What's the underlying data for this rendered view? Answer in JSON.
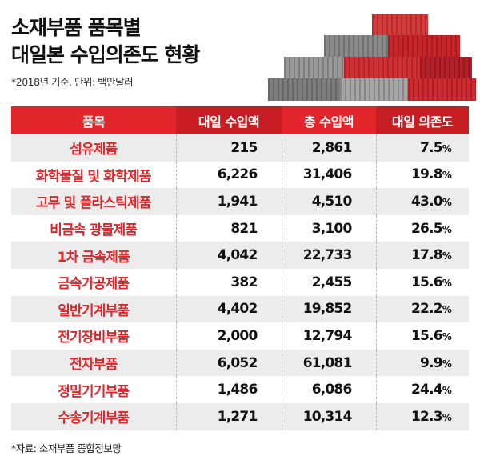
{
  "title_line1": "소재부품 품목별",
  "title_line2": "대일본 수입의존도 현황",
  "subtitle": "*2018년 기준, 단위: 백만달러",
  "source": "*자료: 소재부품 종합정보망",
  "colors": {
    "header": "#e3262b",
    "header_dark": "#c81e23",
    "item_text": "#e0262b",
    "row_alt": "#ececec"
  },
  "chart_data": {
    "type": "table",
    "columns": [
      "품목",
      "대일 수입액",
      "총 수입액",
      "대일 의존도"
    ],
    "rows": [
      [
        "섬유제품",
        "215",
        "2,861",
        "7.5"
      ],
      [
        "화학물질 및 화학제품",
        "6,226",
        "31,406",
        "19.8"
      ],
      [
        "고무 및 플라스틱제품",
        "1,941",
        "4,510",
        "43.0"
      ],
      [
        "비금속 광물제품",
        "821",
        "3,100",
        "26.5"
      ],
      [
        "1차 금속제품",
        "4,042",
        "22,733",
        "17.8"
      ],
      [
        "금속가공제품",
        "382",
        "2,455",
        "15.6"
      ],
      [
        "일반기계부품",
        "4,402",
        "19,852",
        "22.2"
      ],
      [
        "전기장비부품",
        "2,000",
        "12,794",
        "15.6"
      ],
      [
        "전자부품",
        "6,052",
        "61,081",
        "9.9"
      ],
      [
        "정밀기기부품",
        "1,486",
        "6,086",
        "24.4"
      ],
      [
        "수송기계부품",
        "1,271",
        "10,314",
        "12.3"
      ]
    ],
    "pct_suffix": "%"
  }
}
